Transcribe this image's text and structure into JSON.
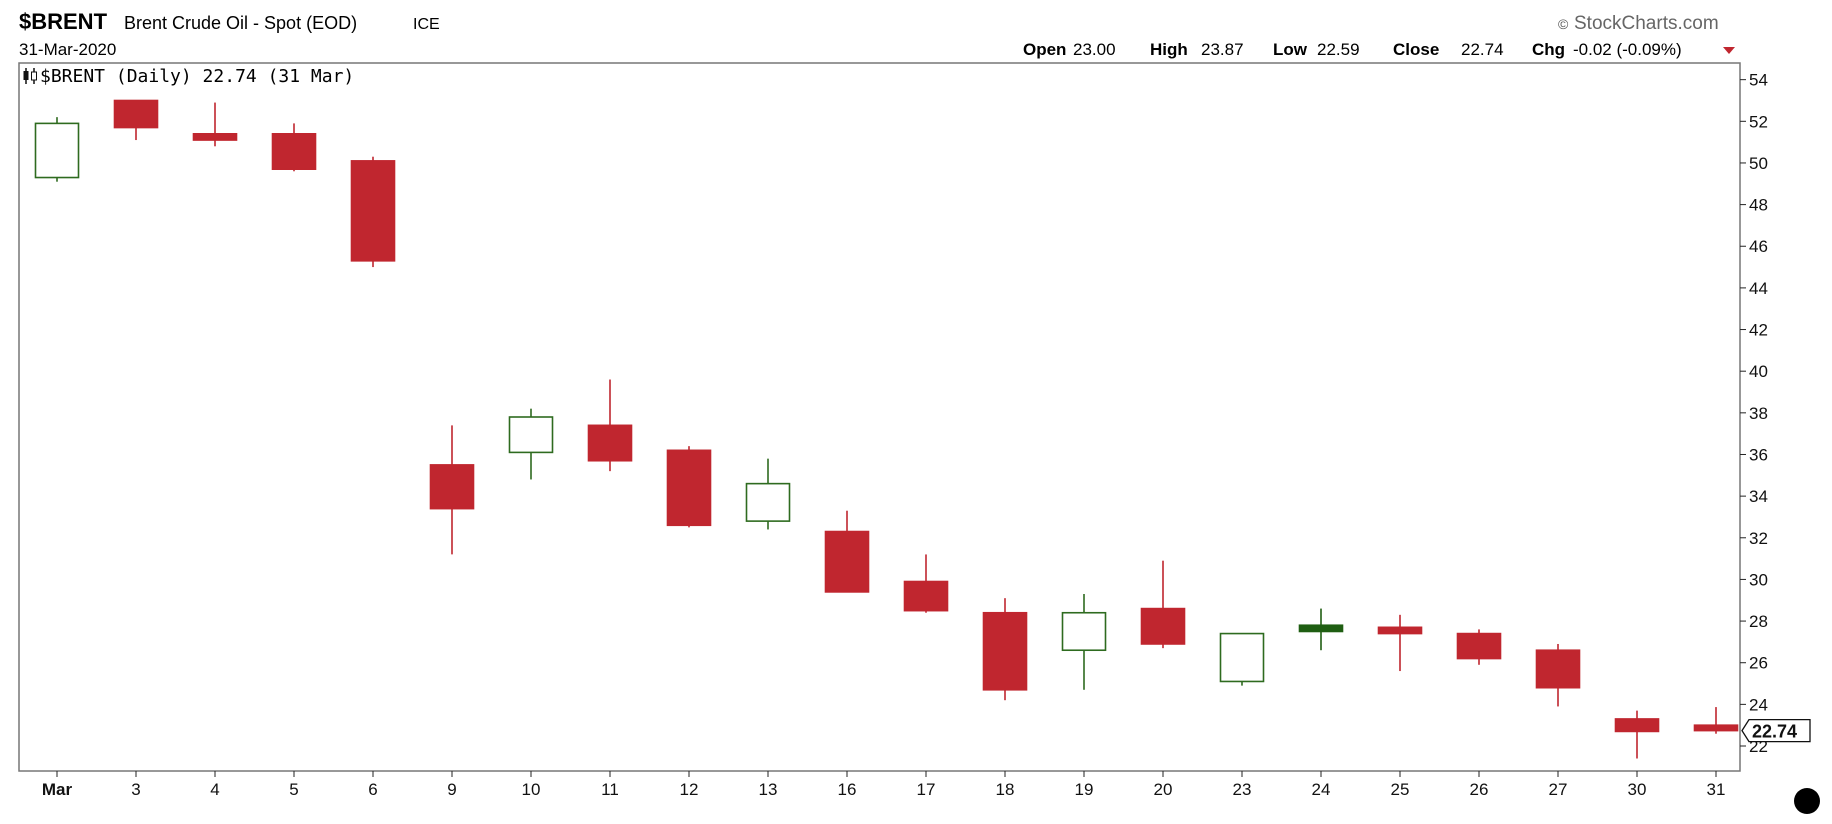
{
  "header": {
    "symbol": "$BRENT",
    "name": "Brent Crude Oil - Spot (EOD)",
    "exchange": "ICE",
    "date": "31-Mar-2020",
    "watermark": "StockCharts.com",
    "watermark_mark": "©"
  },
  "ohlc": {
    "open_label": "Open",
    "open": "23.00",
    "high_label": "High",
    "high": "23.87",
    "low_label": "Low",
    "low": "22.59",
    "close_label": "Close",
    "close": "22.74",
    "chg_label": "Chg",
    "chg": "-0.02 (-0.09%)",
    "chg_color": "#c0262f"
  },
  "legend": {
    "icon": "candlestick-icon",
    "text": "$BRENT (Daily) 22.74 (31 Mar)"
  },
  "colors": {
    "up": "#2e6b1f",
    "down": "#c0262f",
    "up_fill_solid": "#1f5e12",
    "axis": "#222222",
    "grid_frame": "#777777"
  },
  "chart_data": {
    "type": "candlestick",
    "ylim": [
      20.8,
      54.8
    ],
    "yticks": [
      22,
      24,
      26,
      28,
      30,
      32,
      34,
      36,
      38,
      40,
      42,
      44,
      46,
      48,
      50,
      52,
      54
    ],
    "xlabels": [
      "Mar",
      "3",
      "4",
      "5",
      "6",
      "9",
      "10",
      "11",
      "12",
      "13",
      "16",
      "17",
      "18",
      "19",
      "20",
      "23",
      "24",
      "25",
      "26",
      "27",
      "30",
      "31"
    ],
    "last_value_label": "22.74",
    "last_value": 22.74,
    "candles": [
      {
        "date": "Mar",
        "open": 49.3,
        "high": 52.2,
        "low": 49.1,
        "close": 51.9,
        "style": "hollow"
      },
      {
        "date": "3",
        "open": 53.0,
        "high": 53.0,
        "low": 51.1,
        "close": 51.7,
        "style": "down"
      },
      {
        "date": "4",
        "open": 51.4,
        "high": 52.9,
        "low": 50.8,
        "close": 51.1,
        "style": "down"
      },
      {
        "date": "5",
        "open": 51.4,
        "high": 51.9,
        "low": 49.6,
        "close": 49.7,
        "style": "down"
      },
      {
        "date": "6",
        "open": 50.1,
        "high": 50.3,
        "low": 45.0,
        "close": 45.3,
        "style": "down"
      },
      {
        "date": "9",
        "open": 35.5,
        "high": 37.4,
        "low": 31.2,
        "close": 33.4,
        "style": "down"
      },
      {
        "date": "10",
        "open": 36.1,
        "high": 38.2,
        "low": 34.8,
        "close": 37.8,
        "style": "hollow"
      },
      {
        "date": "11",
        "open": 37.4,
        "high": 39.6,
        "low": 35.2,
        "close": 35.7,
        "style": "down"
      },
      {
        "date": "12",
        "open": 36.2,
        "high": 36.4,
        "low": 32.5,
        "close": 32.6,
        "style": "down"
      },
      {
        "date": "13",
        "open": 32.8,
        "high": 35.8,
        "low": 32.4,
        "close": 34.6,
        "style": "hollow"
      },
      {
        "date": "16",
        "open": 32.3,
        "high": 33.3,
        "low": 29.4,
        "close": 29.4,
        "style": "down"
      },
      {
        "date": "17",
        "open": 29.9,
        "high": 31.2,
        "low": 28.4,
        "close": 28.5,
        "style": "down"
      },
      {
        "date": "18",
        "open": 28.4,
        "high": 29.1,
        "low": 24.2,
        "close": 24.7,
        "style": "down"
      },
      {
        "date": "19",
        "open": 26.6,
        "high": 29.3,
        "low": 24.7,
        "close": 28.4,
        "style": "hollow"
      },
      {
        "date": "20",
        "open": 28.6,
        "high": 30.9,
        "low": 26.7,
        "close": 26.9,
        "style": "down"
      },
      {
        "date": "23",
        "open": 25.1,
        "high": 27.4,
        "low": 24.9,
        "close": 27.4,
        "style": "hollow"
      },
      {
        "date": "24",
        "open": 27.5,
        "high": 28.6,
        "low": 26.6,
        "close": 27.8,
        "style": "up-filled"
      },
      {
        "date": "25",
        "open": 27.7,
        "high": 28.3,
        "low": 25.6,
        "close": 27.4,
        "style": "down"
      },
      {
        "date": "26",
        "open": 27.4,
        "high": 27.6,
        "low": 25.9,
        "close": 26.2,
        "style": "down"
      },
      {
        "date": "27",
        "open": 26.6,
        "high": 26.9,
        "low": 23.9,
        "close": 24.8,
        "style": "down"
      },
      {
        "date": "30",
        "open": 23.3,
        "high": 23.7,
        "low": 21.4,
        "close": 22.7,
        "style": "down"
      },
      {
        "date": "31",
        "open": 23.0,
        "high": 23.87,
        "low": 22.59,
        "close": 22.74,
        "style": "down"
      }
    ]
  }
}
